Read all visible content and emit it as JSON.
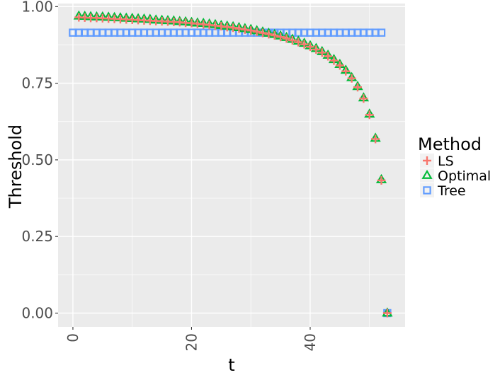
{
  "chart_data": {
    "type": "scatter",
    "xlabel": "t",
    "ylabel": "Threshold",
    "xlim": [
      -2.5,
      56
    ],
    "ylim": [
      -0.045,
      1.01
    ],
    "x_ticks": [
      0,
      20,
      40
    ],
    "x_tick_labels": [
      "0",
      "20",
      "40"
    ],
    "y_ticks": [
      0.0,
      0.25,
      0.5,
      0.75,
      1.0
    ],
    "y_tick_labels": [
      "0.00",
      "0.25",
      "0.50",
      "0.75",
      "1.00"
    ],
    "grid": true,
    "legend": {
      "title": "Method",
      "position": "right",
      "entries": [
        "LS",
        "Optimal",
        "Tree"
      ]
    },
    "colors": {
      "LS": "#f8766d",
      "Optimal": "#00ba38",
      "Tree": "#619cff",
      "panel": "#ebebeb",
      "grid": "#ffffff"
    },
    "series": [
      {
        "name": "LS",
        "marker": "plus",
        "points": [
          [
            1,
            0.965
          ],
          [
            2,
            0.964
          ],
          [
            3,
            0.963
          ],
          [
            4,
            0.963
          ],
          [
            5,
            0.962
          ],
          [
            6,
            0.961
          ],
          [
            7,
            0.96
          ],
          [
            8,
            0.959
          ],
          [
            9,
            0.958
          ],
          [
            10,
            0.957
          ],
          [
            11,
            0.956
          ],
          [
            12,
            0.955
          ],
          [
            13,
            0.954
          ],
          [
            14,
            0.953
          ],
          [
            15,
            0.952
          ],
          [
            16,
            0.951
          ],
          [
            17,
            0.95
          ],
          [
            18,
            0.949
          ],
          [
            19,
            0.947
          ],
          [
            20,
            0.946
          ],
          [
            21,
            0.944
          ],
          [
            22,
            0.942
          ],
          [
            23,
            0.94
          ],
          [
            24,
            0.938
          ],
          [
            25,
            0.936
          ],
          [
            26,
            0.933
          ],
          [
            27,
            0.931
          ],
          [
            28,
            0.928
          ],
          [
            29,
            0.925
          ],
          [
            30,
            0.922
          ],
          [
            31,
            0.918
          ],
          [
            32,
            0.914
          ],
          [
            33,
            0.91
          ],
          [
            34,
            0.906
          ],
          [
            35,
            0.901
          ],
          [
            36,
            0.896
          ],
          [
            37,
            0.89
          ],
          [
            38,
            0.884
          ],
          [
            39,
            0.877
          ],
          [
            40,
            0.869
          ],
          [
            41,
            0.86
          ],
          [
            42,
            0.85
          ],
          [
            43,
            0.838
          ],
          [
            44,
            0.824
          ],
          [
            45,
            0.808
          ],
          [
            46,
            0.789
          ],
          [
            47,
            0.766
          ],
          [
            48,
            0.737
          ],
          [
            49,
            0.7
          ],
          [
            50,
            0.647
          ],
          [
            51,
            0.568
          ],
          [
            52,
            0.433
          ],
          [
            53,
            0.0
          ]
        ]
      },
      {
        "name": "Optimal",
        "marker": "triangle",
        "points": [
          [
            1,
            0.969
          ],
          [
            2,
            0.968
          ],
          [
            3,
            0.967
          ],
          [
            4,
            0.966
          ],
          [
            5,
            0.966
          ],
          [
            6,
            0.965
          ],
          [
            7,
            0.964
          ],
          [
            8,
            0.963
          ],
          [
            9,
            0.962
          ],
          [
            10,
            0.961
          ],
          [
            11,
            0.96
          ],
          [
            12,
            0.959
          ],
          [
            13,
            0.958
          ],
          [
            14,
            0.956
          ],
          [
            15,
            0.955
          ],
          [
            16,
            0.954
          ],
          [
            17,
            0.953
          ],
          [
            18,
            0.951
          ],
          [
            19,
            0.95
          ],
          [
            20,
            0.948
          ],
          [
            21,
            0.946
          ],
          [
            22,
            0.945
          ],
          [
            23,
            0.943
          ],
          [
            24,
            0.941
          ],
          [
            25,
            0.938
          ],
          [
            26,
            0.936
          ],
          [
            27,
            0.934
          ],
          [
            28,
            0.931
          ],
          [
            29,
            0.928
          ],
          [
            30,
            0.925
          ],
          [
            31,
            0.921
          ],
          [
            32,
            0.917
          ],
          [
            33,
            0.913
          ],
          [
            34,
            0.909
          ],
          [
            35,
            0.904
          ],
          [
            36,
            0.899
          ],
          [
            37,
            0.893
          ],
          [
            38,
            0.887
          ],
          [
            39,
            0.88
          ],
          [
            40,
            0.872
          ],
          [
            41,
            0.863
          ],
          [
            42,
            0.853
          ],
          [
            43,
            0.841
          ],
          [
            44,
            0.827
          ],
          [
            45,
            0.811
          ],
          [
            46,
            0.792
          ],
          [
            47,
            0.768
          ],
          [
            48,
            0.739
          ],
          [
            49,
            0.702
          ],
          [
            50,
            0.649
          ],
          [
            51,
            0.57
          ],
          [
            52,
            0.435
          ],
          [
            53,
            0.0
          ]
        ]
      },
      {
        "name": "Tree",
        "marker": "square",
        "points": [
          [
            0,
            0.915
          ],
          [
            1,
            0.915
          ],
          [
            2,
            0.915
          ],
          [
            3,
            0.915
          ],
          [
            4,
            0.915
          ],
          [
            5,
            0.915
          ],
          [
            6,
            0.915
          ],
          [
            7,
            0.915
          ],
          [
            8,
            0.915
          ],
          [
            9,
            0.915
          ],
          [
            10,
            0.915
          ],
          [
            11,
            0.915
          ],
          [
            12,
            0.915
          ],
          [
            13,
            0.915
          ],
          [
            14,
            0.915
          ],
          [
            15,
            0.915
          ],
          [
            16,
            0.915
          ],
          [
            17,
            0.915
          ],
          [
            18,
            0.915
          ],
          [
            19,
            0.915
          ],
          [
            20,
            0.915
          ],
          [
            21,
            0.915
          ],
          [
            22,
            0.915
          ],
          [
            23,
            0.915
          ],
          [
            24,
            0.915
          ],
          [
            25,
            0.915
          ],
          [
            26,
            0.915
          ],
          [
            27,
            0.915
          ],
          [
            28,
            0.915
          ],
          [
            29,
            0.915
          ],
          [
            30,
            0.915
          ],
          [
            31,
            0.915
          ],
          [
            32,
            0.915
          ],
          [
            33,
            0.915
          ],
          [
            34,
            0.915
          ],
          [
            35,
            0.915
          ],
          [
            36,
            0.915
          ],
          [
            37,
            0.915
          ],
          [
            38,
            0.915
          ],
          [
            39,
            0.915
          ],
          [
            40,
            0.915
          ],
          [
            41,
            0.915
          ],
          [
            42,
            0.915
          ],
          [
            43,
            0.915
          ],
          [
            44,
            0.915
          ],
          [
            45,
            0.915
          ],
          [
            46,
            0.915
          ],
          [
            47,
            0.915
          ],
          [
            48,
            0.915
          ],
          [
            49,
            0.915
          ],
          [
            50,
            0.915
          ],
          [
            51,
            0.915
          ],
          [
            52,
            0.915
          ],
          [
            53,
            0.0
          ]
        ]
      }
    ]
  }
}
